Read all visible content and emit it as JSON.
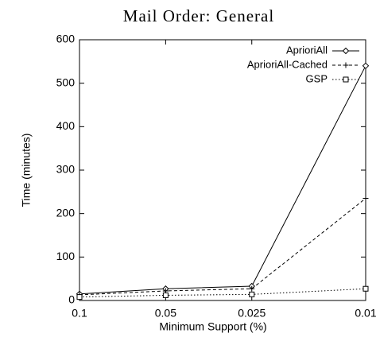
{
  "chart_data": {
    "type": "line",
    "title": "Mail Order: General",
    "xlabel": "Minimum Support (%)",
    "ylabel": "Time (minutes)",
    "x": [
      0.1,
      0.05,
      0.025,
      0.01
    ],
    "series": [
      {
        "name": "AprioriAll",
        "color": "#000000",
        "values": [
          15,
          27,
          33,
          540
        ]
      },
      {
        "name": "AprioriAll-Cached",
        "color": "#000000",
        "values": [
          13,
          22,
          27,
          235
        ]
      },
      {
        "name": "GSP",
        "color": "#000000",
        "values": [
          8,
          12,
          14,
          27
        ]
      }
    ],
    "xlim": [
      0.1,
      0.01
    ],
    "xticks": [
      0.1,
      0.05,
      0.025,
      0.01
    ],
    "xscale": "log",
    "ylim": [
      0,
      600
    ],
    "yticks": [
      0,
      100,
      200,
      300,
      400,
      500,
      600
    ],
    "legend": "upper right",
    "grid": false
  }
}
